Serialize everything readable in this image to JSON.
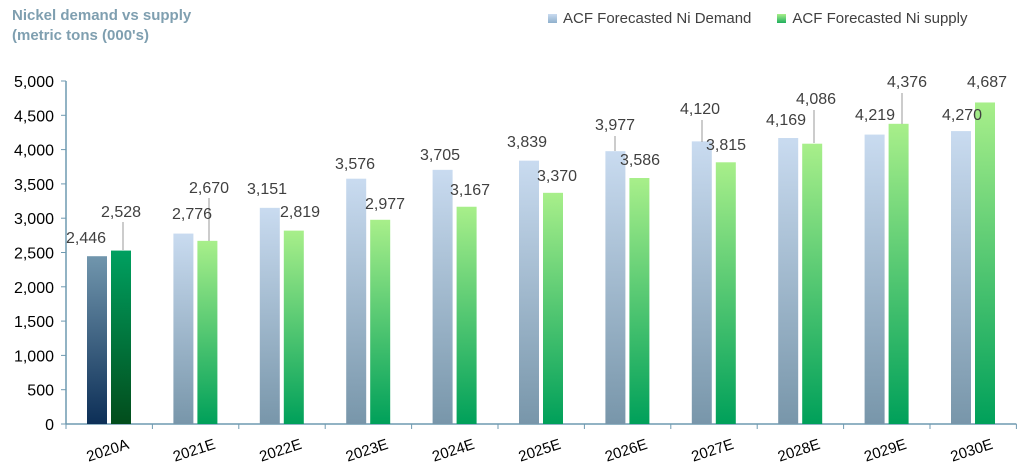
{
  "chart_data": {
    "type": "bar",
    "title": "Nickel demand vs supply",
    "subtitle": "(metric tons (000's)",
    "xlabel": "",
    "ylabel": "",
    "ylim": [
      0,
      5000
    ],
    "yticks": [
      "0",
      "500",
      "1,000",
      "1,500",
      "2,000",
      "2,500",
      "3,000",
      "3,500",
      "4,000",
      "4,500",
      "5,000"
    ],
    "grid": false,
    "legend_position": "top-right",
    "categories": [
      "2020A",
      "2021E",
      "2022E",
      "2023E",
      "2024E",
      "2025E",
      "2026E",
      "2027E",
      "2028E",
      "2029E",
      "2030E"
    ],
    "series": [
      {
        "name": "ACF Forecasted Ni Demand",
        "values": [
          2446,
          2776,
          3151,
          3576,
          3705,
          3839,
          3977,
          4120,
          4169,
          4219,
          4270
        ],
        "labels": [
          "2,446",
          "2,776",
          "3,151",
          "3,576",
          "3,705",
          "3,839",
          "3,977",
          "4,120",
          "4,169",
          "4,219",
          "4,270"
        ],
        "color": "#b8cde6",
        "color_actual": "#2f5a80"
      },
      {
        "name": "ACF Forecasted Ni supply",
        "values": [
          2528,
          2670,
          2819,
          2977,
          3167,
          3370,
          3586,
          3815,
          4086,
          4376,
          4687
        ],
        "labels": [
          "2,528",
          "2,670",
          "2,819",
          "2,977",
          "3,167",
          "3,370",
          "3,586",
          "3,815",
          "4,086",
          "4,376",
          "4,687"
        ],
        "color": "#7fdc7a",
        "color_actual": "#00804a"
      }
    ]
  }
}
